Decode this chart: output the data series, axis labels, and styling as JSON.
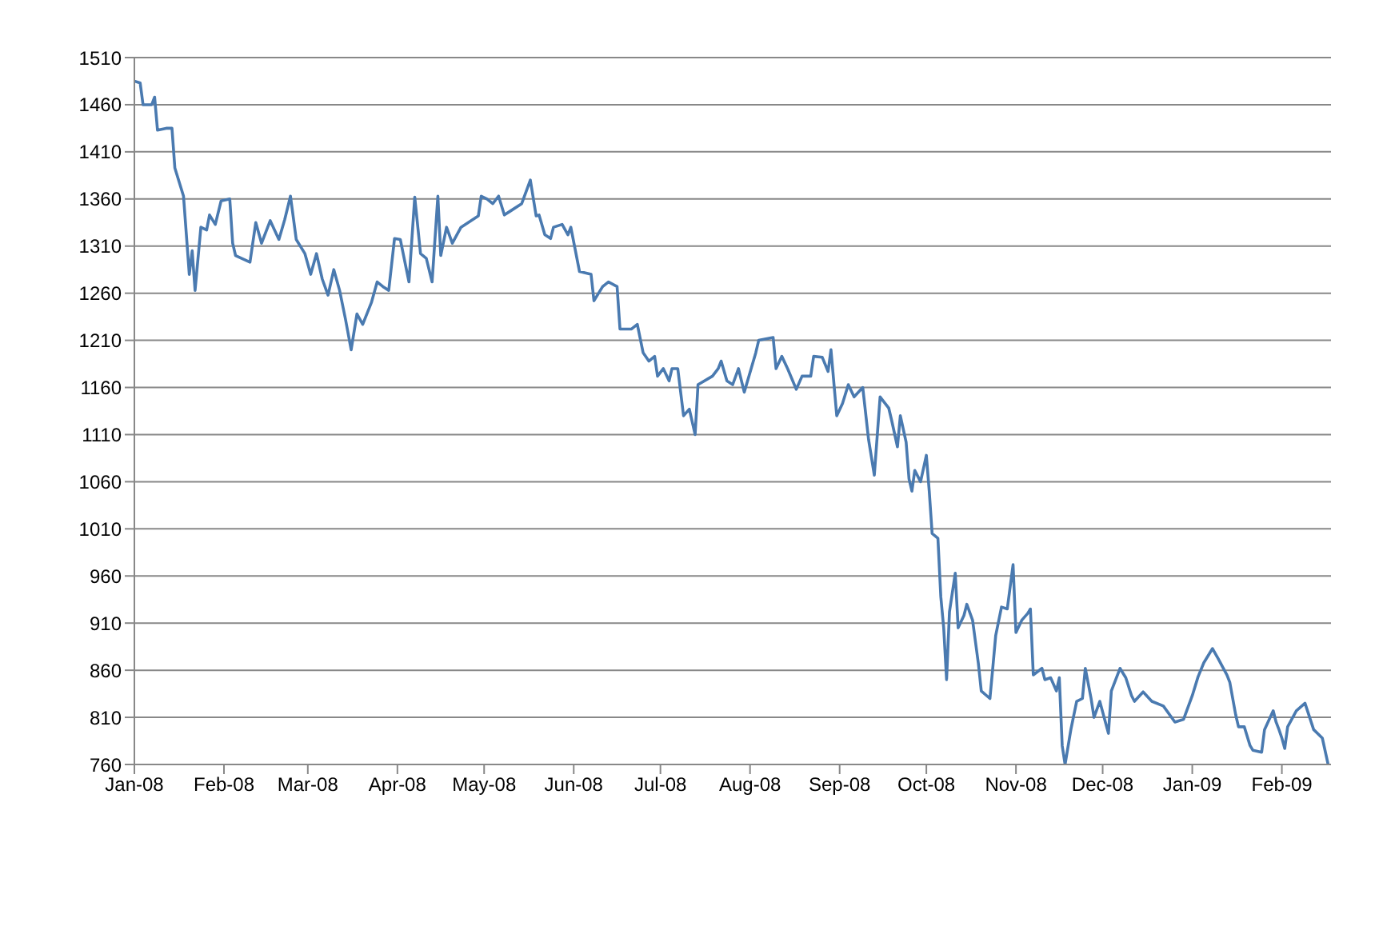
{
  "chart_data": {
    "type": "line",
    "x": [
      "2008-01-01",
      "2008-01-03",
      "2008-01-04",
      "2008-01-07",
      "2008-01-08",
      "2008-01-09",
      "2008-01-12",
      "2008-01-14",
      "2008-01-15",
      "2008-01-18",
      "2008-01-20",
      "2008-01-21",
      "2008-01-22",
      "2008-01-24",
      "2008-01-26",
      "2008-01-27",
      "2008-01-29",
      "2008-01-31",
      "2008-02-03",
      "2008-02-04",
      "2008-02-05",
      "2008-02-10",
      "2008-02-12",
      "2008-02-14",
      "2008-02-17",
      "2008-02-20",
      "2008-02-22",
      "2008-02-24",
      "2008-02-26",
      "2008-02-29",
      "2008-03-02",
      "2008-03-04",
      "2008-03-06",
      "2008-03-08",
      "2008-03-10",
      "2008-03-12",
      "2008-03-14",
      "2008-03-16",
      "2008-03-18",
      "2008-03-20",
      "2008-03-23",
      "2008-03-25",
      "2008-03-27",
      "2008-03-29",
      "2008-03-31",
      "2008-04-02",
      "2008-04-05",
      "2008-04-07",
      "2008-04-09",
      "2008-04-11",
      "2008-04-13",
      "2008-04-15",
      "2008-04-16",
      "2008-04-18",
      "2008-04-20",
      "2008-04-23",
      "2008-04-27",
      "2008-04-29",
      "2008-04-30",
      "2008-05-02",
      "2008-05-04",
      "2008-05-06",
      "2008-05-08",
      "2008-05-10",
      "2008-05-14",
      "2008-05-17",
      "2008-05-19",
      "2008-05-20",
      "2008-05-22",
      "2008-05-24",
      "2008-05-25",
      "2008-05-28",
      "2008-05-30",
      "2008-05-31",
      "2008-06-03",
      "2008-06-07",
      "2008-06-08",
      "2008-06-11",
      "2008-06-13",
      "2008-06-16",
      "2008-06-17",
      "2008-06-21",
      "2008-06-23",
      "2008-06-25",
      "2008-06-27",
      "2008-06-29",
      "2008-06-30",
      "2008-07-02",
      "2008-07-04",
      "2008-07-05",
      "2008-07-07",
      "2008-07-09",
      "2008-07-11",
      "2008-07-13",
      "2008-07-14",
      "2008-07-19",
      "2008-07-21",
      "2008-07-22",
      "2008-07-24",
      "2008-07-26",
      "2008-07-28",
      "2008-07-30",
      "2008-08-03",
      "2008-08-04",
      "2008-08-09",
      "2008-08-10",
      "2008-08-12",
      "2008-08-14",
      "2008-08-17",
      "2008-08-19",
      "2008-08-22",
      "2008-08-23",
      "2008-08-26",
      "2008-08-28",
      "2008-08-29",
      "2008-08-31",
      "2008-09-02",
      "2008-09-04",
      "2008-09-06",
      "2008-09-09",
      "2008-09-11",
      "2008-09-13",
      "2008-09-15",
      "2008-09-18",
      "2008-09-19",
      "2008-09-21",
      "2008-09-22",
      "2008-09-24",
      "2008-09-25",
      "2008-09-26",
      "2008-09-27",
      "2008-09-29",
      "2008-10-01",
      "2008-10-02",
      "2008-10-03",
      "2008-10-05",
      "2008-10-06",
      "2008-10-07",
      "2008-10-08",
      "2008-10-09",
      "2008-10-11",
      "2008-10-12",
      "2008-10-14",
      "2008-10-15",
      "2008-10-17",
      "2008-10-19",
      "2008-10-20",
      "2008-10-23",
      "2008-10-24",
      "2008-10-25",
      "2008-10-27",
      "2008-10-29",
      "2008-10-31",
      "2008-11-01",
      "2008-11-03",
      "2008-11-05",
      "2008-11-06",
      "2008-11-07",
      "2008-11-10",
      "2008-11-11",
      "2008-11-13",
      "2008-11-15",
      "2008-11-16",
      "2008-11-17",
      "2008-11-18",
      "2008-11-20",
      "2008-11-22",
      "2008-11-24",
      "2008-11-25",
      "2008-11-27",
      "2008-11-28",
      "2008-11-30",
      "2008-12-03",
      "2008-12-04",
      "2008-12-07",
      "2008-12-09",
      "2008-12-11",
      "2008-12-12",
      "2008-12-15",
      "2008-12-18",
      "2008-12-22",
      "2008-12-26",
      "2008-12-29",
      "2009-01-01",
      "2009-01-03",
      "2009-01-05",
      "2009-01-08",
      "2009-01-10",
      "2009-01-13",
      "2009-01-14",
      "2009-01-16",
      "2009-01-17",
      "2009-01-19",
      "2009-01-21",
      "2009-01-22",
      "2009-01-25",
      "2009-01-26",
      "2009-01-29",
      "2009-01-30",
      "2009-01-31",
      "2009-02-01",
      "2009-02-02",
      "2009-02-03",
      "2009-02-06",
      "2009-02-09",
      "2009-02-12",
      "2009-02-15",
      "2009-02-17"
    ],
    "series": [
      {
        "color": "#4a7ab0",
        "values": [
          1485,
          1483,
          1460,
          1460,
          1468,
          1433,
          1435,
          1435,
          1393,
          1363,
          1280,
          1305,
          1263,
          1330,
          1327,
          1343,
          1333,
          1358,
          1360,
          1313,
          1300,
          1293,
          1335,
          1313,
          1337,
          1317,
          1338,
          1363,
          1317,
          1302,
          1280,
          1302,
          1275,
          1258,
          1285,
          1263,
          1233,
          1200,
          1238,
          1227,
          1250,
          1272,
          1267,
          1263,
          1318,
          1317,
          1272,
          1362,
          1302,
          1297,
          1272,
          1363,
          1300,
          1330,
          1313,
          1330,
          1338,
          1342,
          1363,
          1360,
          1355,
          1363,
          1343,
          1347,
          1355,
          1380,
          1342,
          1343,
          1322,
          1318,
          1330,
          1333,
          1322,
          1330,
          1283,
          1280,
          1252,
          1267,
          1272,
          1267,
          1222,
          1222,
          1227,
          1197,
          1188,
          1193,
          1172,
          1180,
          1167,
          1180,
          1180,
          1130,
          1137,
          1110,
          1163,
          1172,
          1180,
          1188,
          1167,
          1163,
          1180,
          1155,
          1197,
          1210,
          1213,
          1180,
          1193,
          1180,
          1158,
          1172,
          1172,
          1193,
          1192,
          1177,
          1200,
          1130,
          1143,
          1163,
          1150,
          1160,
          1105,
          1067,
          1150,
          1138,
          1125,
          1097,
          1130,
          1102,
          1063,
          1050,
          1072,
          1060,
          1088,
          1050,
          1005,
          1000,
          938,
          905,
          850,
          922,
          963,
          905,
          918,
          930,
          913,
          867,
          838,
          830,
          863,
          897,
          927,
          925,
          972,
          900,
          913,
          920,
          925,
          855,
          862,
          850,
          852,
          838,
          852,
          780,
          760,
          797,
          827,
          830,
          862,
          830,
          810,
          827,
          793,
          838,
          862,
          852,
          833,
          827,
          837,
          827,
          822,
          805,
          808,
          833,
          853,
          868,
          883,
          872,
          855,
          847,
          813,
          800,
          800,
          780,
          775,
          773,
          797,
          817,
          805,
          797,
          788,
          777,
          800,
          817,
          825,
          797,
          788,
          760
        ]
      }
    ],
    "xlim": [
      "2008-01-01",
      "2009-02-18"
    ],
    "xticks": [
      {
        "value": "2008-01-01",
        "label": "Jan-08"
      },
      {
        "value": "2008-02-01",
        "label": "Feb-08"
      },
      {
        "value": "2008-03-01",
        "label": "Mar-08"
      },
      {
        "value": "2008-04-01",
        "label": "Apr-08"
      },
      {
        "value": "2008-05-01",
        "label": "May-08"
      },
      {
        "value": "2008-06-01",
        "label": "Jun-08"
      },
      {
        "value": "2008-07-01",
        "label": "Jul-08"
      },
      {
        "value": "2008-08-01",
        "label": "Aug-08"
      },
      {
        "value": "2008-09-01",
        "label": "Sep-08"
      },
      {
        "value": "2008-10-01",
        "label": "Oct-08"
      },
      {
        "value": "2008-11-01",
        "label": "Nov-08"
      },
      {
        "value": "2008-12-01",
        "label": "Dec-08"
      },
      {
        "value": "2009-01-01",
        "label": "Jan-09"
      },
      {
        "value": "2009-02-01",
        "label": "Feb-09"
      }
    ],
    "ylim": [
      760,
      1510
    ],
    "yticks": [
      760,
      810,
      860,
      910,
      960,
      1010,
      1060,
      1110,
      1160,
      1210,
      1260,
      1310,
      1360,
      1410,
      1460,
      1510
    ],
    "grid": "y",
    "marker": "none",
    "line_style": "solid"
  }
}
